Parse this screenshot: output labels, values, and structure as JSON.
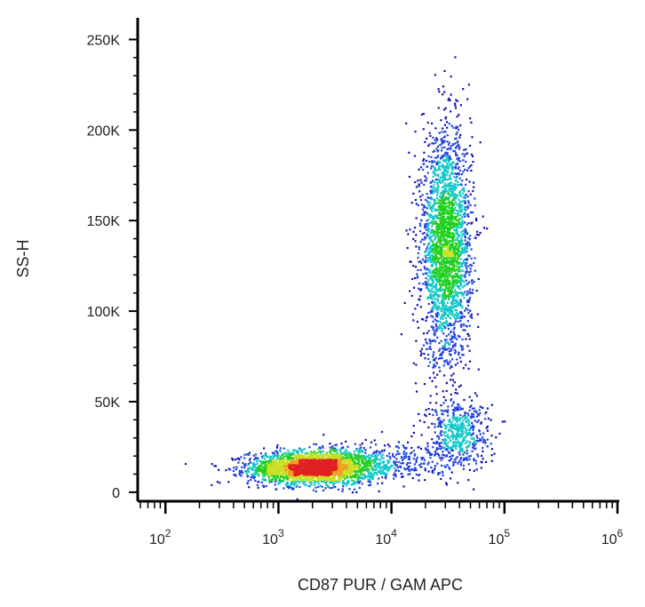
{
  "chart_data": {
    "type": "scatter",
    "subtype": "flow-cytometry-density-dot-plot",
    "title": "",
    "xlabel": "CD87 PUR / GAM APC",
    "ylabel": "SS-H",
    "x_scale": "log",
    "xlim": [
      60,
      1000000
    ],
    "ylim": [
      -4000,
      262000
    ],
    "x_ticks": [
      {
        "value": 100,
        "base": "10",
        "exp": "2"
      },
      {
        "value": 1000,
        "base": "10",
        "exp": "3"
      },
      {
        "value": 10000,
        "base": "10",
        "exp": "4"
      },
      {
        "value": 100000,
        "base": "10",
        "exp": "5"
      },
      {
        "value": 1000000,
        "base": "10",
        "exp": "6"
      }
    ],
    "y_ticks": [
      {
        "value": 0,
        "label": "0"
      },
      {
        "value": 50000,
        "label": "50K"
      },
      {
        "value": 100000,
        "label": "100K"
      },
      {
        "value": 150000,
        "label": "150K"
      },
      {
        "value": 200000,
        "label": "200K"
      },
      {
        "value": 250000,
        "label": "250K"
      }
    ],
    "populations": [
      {
        "x_center": 2000,
        "y_center": 14000,
        "x_spread_decades": 0.28,
        "y_spread": 4500,
        "points": 2600
      },
      {
        "x_center": 30000,
        "y_center": 135000,
        "x_spread_decades": 0.11,
        "y_spread": 32000,
        "points": 2600
      },
      {
        "x_center": 38000,
        "y_center": 33000,
        "x_spread_decades": 0.14,
        "y_spread": 9000,
        "points": 500
      },
      {
        "x_center": 8000,
        "y_center": 17000,
        "x_spread_decades": 0.35,
        "y_spread": 6000,
        "points": 400
      }
    ],
    "density_colors": [
      "#1010b0",
      "#2040e0",
      "#10c8c8",
      "#20d020",
      "#c8e020",
      "#f0a020",
      "#e02020"
    ],
    "grid": false,
    "legend": "none"
  }
}
